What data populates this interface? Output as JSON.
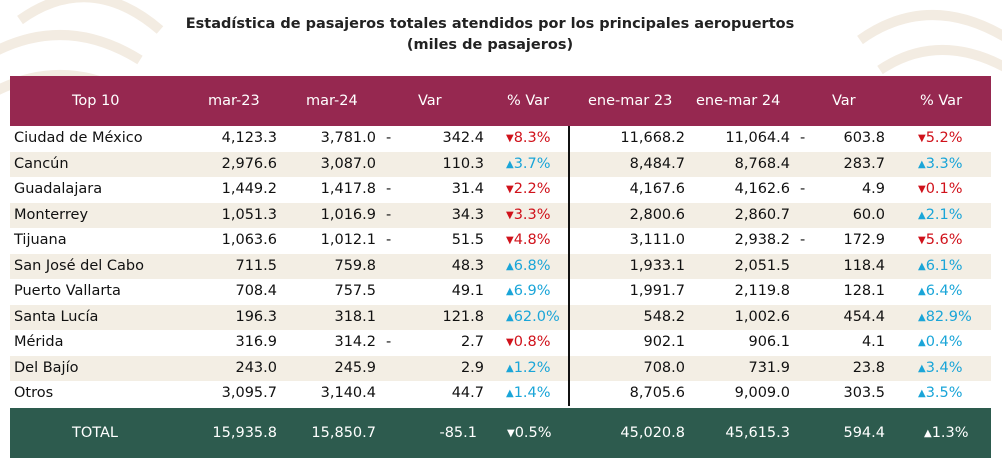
{
  "title": {
    "line1": "Estadística de pasajeros totales atendidos por los principales aeropuertos",
    "line2": "(miles de pasajeros)"
  },
  "header": [
    "Top 10",
    "mar-23",
    "mar-24",
    "Var",
    "% Var",
    "ene-mar 23",
    "ene-mar 24",
    "Var",
    "% Var"
  ],
  "rows": [
    {
      "name": "Ciudad de México",
      "m23": "4,123.3",
      "m24": "3,781.0",
      "var_dash": "-",
      "var": "342.4",
      "pct_dir": "down",
      "pct": "8.3%",
      "e23": "11,668.2",
      "e24": "11,064.4",
      "evar_dash": "-",
      "evar": "603.8",
      "epct_dir": "down",
      "epct": "5.2%"
    },
    {
      "name": "Cancún",
      "m23": "2,976.6",
      "m24": "3,087.0",
      "var_dash": "",
      "var": "110.3",
      "pct_dir": "up",
      "pct": "3.7%",
      "e23": "8,484.7",
      "e24": "8,768.4",
      "evar_dash": "",
      "evar": "283.7",
      "epct_dir": "up",
      "epct": "3.3%"
    },
    {
      "name": "Guadalajara",
      "m23": "1,449.2",
      "m24": "1,417.8",
      "var_dash": "-",
      "var": "31.4",
      "pct_dir": "down",
      "pct": "2.2%",
      "e23": "4,167.6",
      "e24": "4,162.6",
      "evar_dash": "-",
      "evar": "4.9",
      "epct_dir": "down",
      "epct": "0.1%"
    },
    {
      "name": "Monterrey",
      "m23": "1,051.3",
      "m24": "1,016.9",
      "var_dash": "-",
      "var": "34.3",
      "pct_dir": "down",
      "pct": "3.3%",
      "e23": "2,800.6",
      "e24": "2,860.7",
      "evar_dash": "",
      "evar": "60.0",
      "epct_dir": "up",
      "epct": "2.1%"
    },
    {
      "name": "Tijuana",
      "m23": "1,063.6",
      "m24": "1,012.1",
      "var_dash": "-",
      "var": "51.5",
      "pct_dir": "down",
      "pct": "4.8%",
      "e23": "3,111.0",
      "e24": "2,938.2",
      "evar_dash": "-",
      "evar": "172.9",
      "epct_dir": "down",
      "epct": "5.6%"
    },
    {
      "name": "San José del Cabo",
      "m23": "711.5",
      "m24": "759.8",
      "var_dash": "",
      "var": "48.3",
      "pct_dir": "up",
      "pct": "6.8%",
      "e23": "1,933.1",
      "e24": "2,051.5",
      "evar_dash": "",
      "evar": "118.4",
      "epct_dir": "up",
      "epct": "6.1%"
    },
    {
      "name": "Puerto Vallarta",
      "m23": "708.4",
      "m24": "757.5",
      "var_dash": "",
      "var": "49.1",
      "pct_dir": "up",
      "pct": "6.9%",
      "e23": "1,991.7",
      "e24": "2,119.8",
      "evar_dash": "",
      "evar": "128.1",
      "epct_dir": "up",
      "epct": "6.4%"
    },
    {
      "name": "Santa Lucía",
      "m23": "196.3",
      "m24": "318.1",
      "var_dash": "",
      "var": "121.8",
      "pct_dir": "up",
      "pct": "62.0%",
      "e23": "548.2",
      "e24": "1,002.6",
      "evar_dash": "",
      "evar": "454.4",
      "epct_dir": "up",
      "epct": "82.9%"
    },
    {
      "name": "Mérida",
      "m23": "316.9",
      "m24": "314.2",
      "var_dash": "-",
      "var": "2.7",
      "pct_dir": "down",
      "pct": "0.8%",
      "e23": "902.1",
      "e24": "906.1",
      "evar_dash": "",
      "evar": "4.1",
      "epct_dir": "up",
      "epct": "0.4%"
    },
    {
      "name": "Del Bajío",
      "m23": "243.0",
      "m24": "245.9",
      "var_dash": "",
      "var": "2.9",
      "pct_dir": "up",
      "pct": "1.2%",
      "e23": "708.0",
      "e24": "731.9",
      "evar_dash": "",
      "evar": "23.8",
      "epct_dir": "up",
      "epct": "3.4%"
    },
    {
      "name": "Otros",
      "m23": "3,095.7",
      "m24": "3,140.4",
      "var_dash": "",
      "var": "44.7",
      "pct_dir": "up",
      "pct": "1.4%",
      "e23": "8,705.6",
      "e24": "9,009.0",
      "evar_dash": "",
      "evar": "303.5",
      "epct_dir": "up",
      "epct": "3.5%"
    }
  ],
  "total": {
    "name": "TOTAL",
    "m23": "15,935.8",
    "m24": "15,850.7",
    "var": "-85.1",
    "pct_dir": "down",
    "pct": "0.5%",
    "e23": "45,020.8",
    "e24": "45,615.3",
    "evar": "594.4",
    "epct_dir": "up",
    "epct": "1.3%"
  },
  "arrows": {
    "up": "▲",
    "down": "▼"
  },
  "colors": {
    "header_bg": "#962850",
    "total_bg": "#2d5b4e",
    "row_shade": "#f3eee4",
    "down": "#d0121b",
    "up": "#1aa5d8"
  }
}
